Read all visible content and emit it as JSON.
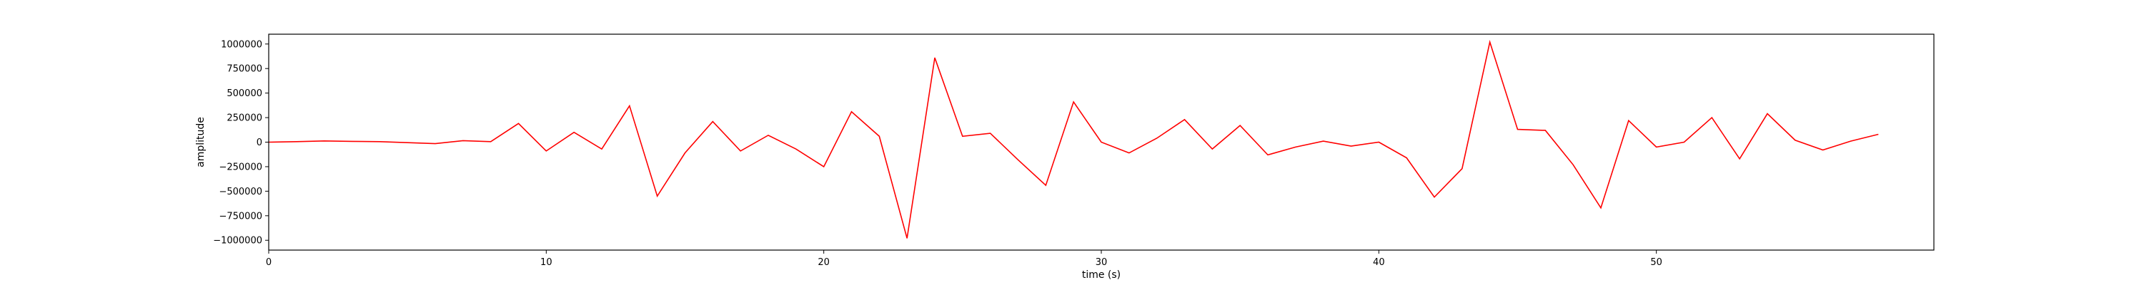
{
  "chart_data": {
    "type": "line",
    "title": "",
    "xlabel": "time (s)",
    "ylabel": "amplitude",
    "xlim": [
      0,
      60
    ],
    "ylim": [
      -1100000,
      1100000
    ],
    "xticks": [
      0,
      10,
      20,
      30,
      40,
      50
    ],
    "xtick_labels": [
      "0",
      "10",
      "20",
      "30",
      "40",
      "50"
    ],
    "yticks": [
      -1000000,
      -750000,
      -500000,
      -250000,
      0,
      250000,
      500000,
      750000,
      1000000
    ],
    "ytick_labels": [
      "−1000000",
      "−750000",
      "−500000",
      "−250000",
      "0",
      "250000",
      "500000",
      "750000",
      "1000000"
    ],
    "grid": false,
    "series": [
      {
        "name": "amplitude",
        "color": "#ff0000",
        "x": [
          0,
          1,
          2,
          3,
          4,
          5,
          6,
          7,
          8,
          9,
          10,
          11,
          12,
          13,
          14,
          15,
          16,
          17,
          18,
          19,
          20,
          21,
          22,
          23,
          24,
          25,
          26,
          27,
          28,
          29,
          30,
          31,
          32,
          33,
          34,
          35,
          36,
          37,
          38,
          39,
          40,
          41,
          42,
          43,
          44,
          45,
          46,
          47,
          48,
          49,
          50,
          51,
          52,
          53,
          54,
          55,
          56,
          57,
          58
        ],
        "values": [
          0,
          5000,
          12000,
          8000,
          5000,
          -5000,
          -15000,
          15000,
          5000,
          190000,
          -90000,
          100000,
          -70000,
          370000,
          -550000,
          -110000,
          210000,
          -90000,
          70000,
          -70000,
          -250000,
          310000,
          60000,
          -980000,
          860000,
          60000,
          90000,
          -180000,
          -440000,
          410000,
          0,
          -110000,
          40000,
          230000,
          -70000,
          170000,
          -130000,
          -50000,
          10000,
          -40000,
          0,
          -160000,
          -560000,
          -270000,
          1020000,
          130000,
          120000,
          -230000,
          -670000,
          220000,
          -50000,
          0,
          250000,
          -170000,
          290000,
          20000,
          -80000,
          10000,
          80000
        ]
      }
    ]
  }
}
